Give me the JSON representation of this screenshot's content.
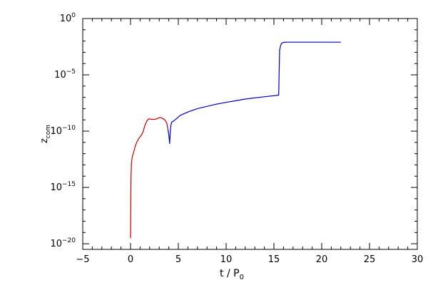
{
  "chart_data": {
    "type": "line",
    "title": "",
    "xlabel": "t / P",
    "xlabel_sub": "0",
    "ylabel": "z",
    "ylabel_sub": "com",
    "xlim": [
      -5,
      30
    ],
    "ylim_exponents": [
      -20.5,
      0
    ],
    "yscale": "log",
    "grid": false,
    "x_ticks": [
      "−5",
      "0",
      "5",
      "10",
      "15",
      "20",
      "25",
      "30"
    ],
    "x_tick_values": [
      -5,
      0,
      5,
      10,
      15,
      20,
      25,
      30
    ],
    "y_tick_base": "10",
    "y_tick_exponents": [
      "0",
      "−5",
      "−10",
      "−15",
      "−20"
    ],
    "y_tick_exp_values": [
      0,
      -5,
      -10,
      -15,
      -20
    ],
    "series": [
      {
        "color": "#c00000",
        "x": [
          0.0,
          0.03,
          0.05,
          0.1,
          0.2,
          0.35,
          0.5,
          0.7,
          0.9,
          1.1,
          1.3,
          1.5,
          1.7,
          1.9,
          2.2,
          2.5,
          2.8,
          3.0,
          3.2,
          3.4,
          3.6,
          3.8,
          3.9
        ],
        "log10_y": [
          -19.5,
          -16.0,
          -14.0,
          -12.8,
          -12.2,
          -11.8,
          -11.3,
          -10.9,
          -10.6,
          -10.4,
          -10.1,
          -9.5,
          -9.1,
          -8.9,
          -8.95,
          -8.95,
          -8.9,
          -8.8,
          -8.8,
          -8.9,
          -9.0,
          -9.3,
          -9.8
        ]
      },
      {
        "color": "#0000c0",
        "x": [
          3.9,
          4.0,
          4.1,
          4.15,
          4.2,
          4.3,
          4.5,
          4.8,
          5.2,
          6.0,
          7.0,
          8.0,
          9.0,
          10.0,
          11.0,
          12.0,
          13.0,
          14.0,
          15.0,
          15.5,
          15.55,
          15.6,
          15.7,
          15.8,
          16.0,
          16.3,
          17.0,
          19.0,
          22.0
        ],
        "log10_y": [
          -9.8,
          -10.3,
          -11.1,
          -10.2,
          -9.6,
          -9.2,
          -9.1,
          -8.9,
          -8.6,
          -8.3,
          -8.0,
          -7.8,
          -7.6,
          -7.45,
          -7.3,
          -7.15,
          -7.05,
          -6.95,
          -6.85,
          -6.8,
          -4.5,
          -2.8,
          -2.4,
          -2.2,
          -2.12,
          -2.1,
          -2.1,
          -2.1,
          -2.1
        ]
      }
    ]
  }
}
